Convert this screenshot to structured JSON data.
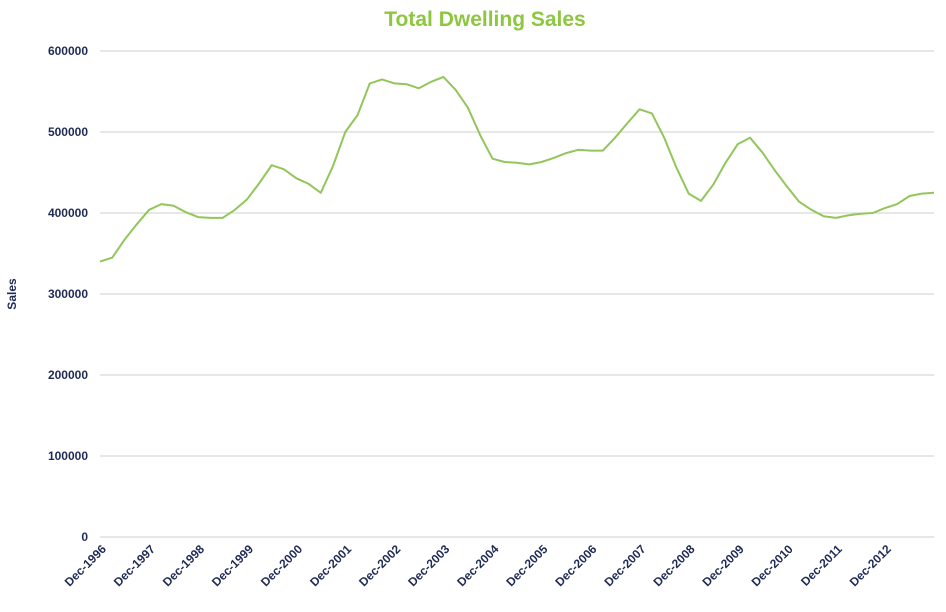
{
  "chart_data": {
    "type": "line",
    "title": "Total Dwelling Sales",
    "y_label": "Sales",
    "categories": [
      "Dec-1996",
      null,
      null,
      null,
      "Dec-1997",
      null,
      null,
      null,
      "Dec-1998",
      null,
      null,
      null,
      "Dec-1999",
      null,
      null,
      null,
      "Dec-2000",
      null,
      null,
      null,
      "Dec-2001",
      null,
      null,
      null,
      "Dec-2002",
      null,
      null,
      null,
      "Dec-2003",
      null,
      null,
      null,
      "Dec-2004",
      null,
      null,
      null,
      "Dec-2005",
      null,
      null,
      null,
      "Dec-2006",
      null,
      null,
      null,
      "Dec-2007",
      null,
      null,
      null,
      "Dec-2008",
      null,
      null,
      null,
      "Dec-2009",
      null,
      null,
      null,
      "Dec-2010",
      null,
      null,
      null,
      "Dec-2011",
      null,
      null,
      null,
      "Dec-2012",
      null,
      null,
      null,
      null
    ],
    "series": [
      {
        "name": "Sales",
        "color": "#92c65a",
        "values": [
          340000,
          345000,
          367000,
          386000,
          404000,
          411000,
          409000,
          401000,
          395000,
          394000,
          394000,
          404000,
          417000,
          437000,
          459000,
          454000,
          443000,
          436000,
          425000,
          458000,
          500000,
          521000,
          560000,
          565000,
          560000,
          559000,
          554000,
          562000,
          568000,
          552000,
          530000,
          496000,
          467000,
          463000,
          462000,
          460000,
          463000,
          468000,
          474000,
          478000,
          477000,
          477000,
          493000,
          511000,
          528000,
          523000,
          493000,
          456000,
          424000,
          415000,
          435000,
          462000,
          485000,
          493000,
          475000,
          453000,
          433000,
          414000,
          404000,
          396000,
          394000,
          397000,
          399000,
          400000,
          406000,
          411000,
          421000,
          424000,
          425000
        ]
      }
    ],
    "ylim": [
      0,
      600000
    ],
    "yticks": [
      0,
      100000,
      200000,
      300000,
      400000,
      500000,
      600000
    ],
    "grid": true
  }
}
